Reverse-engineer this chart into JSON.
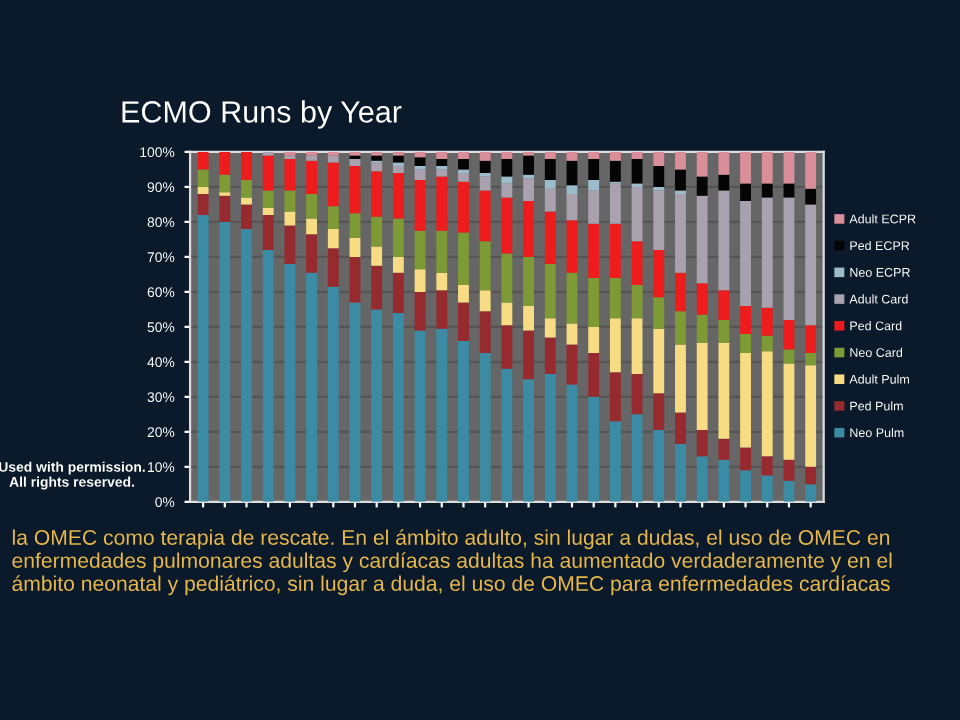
{
  "chart_data": {
    "type": "bar",
    "stacked": true,
    "title": "ECMO Runs by Year",
    "categories": [
      null,
      null,
      null,
      null,
      null,
      null,
      null,
      null,
      null,
      null,
      null,
      null,
      null,
      null,
      null,
      null,
      null,
      null,
      null,
      null,
      null,
      null,
      null,
      null,
      null,
      null,
      null,
      null,
      null
    ],
    "series": [
      {
        "name": "Neo Pulm",
        "color": "#3a8ba3",
        "values": [
          82,
          80,
          78,
          72,
          68,
          65.5,
          61.5,
          57,
          55,
          54,
          49,
          49.5,
          46,
          42.5,
          38,
          35,
          36.5,
          33.5,
          30,
          23,
          25,
          20.5,
          16.5,
          13,
          12,
          9,
          7.5,
          6,
          5
        ]
      },
      {
        "name": "Ped Pulm",
        "color": "#962a2e",
        "values": [
          6,
          7.5,
          7,
          10,
          11,
          11,
          11,
          13,
          12.5,
          11.5,
          11,
          11,
          11,
          12,
          12.5,
          14,
          10.5,
          11.5,
          12.5,
          14,
          11.5,
          10.5,
          9,
          7.5,
          6,
          6.5,
          5.5,
          6,
          5
        ]
      },
      {
        "name": "Adult Pulm",
        "color": "#f7dc84",
        "values": [
          2,
          1,
          2,
          2,
          4,
          4.5,
          5.5,
          5.5,
          5.5,
          4.5,
          6.5,
          5,
          5,
          6,
          6.5,
          7,
          5.5,
          6,
          7.5,
          15.5,
          16,
          18.5,
          19.5,
          25,
          27.5,
          27,
          30,
          27.5,
          29
        ]
      },
      {
        "name": "Neo Card",
        "color": "#7d9a34",
        "values": [
          5,
          5,
          5,
          5,
          6,
          7,
          6.5,
          7,
          8.5,
          11,
          11,
          12,
          15,
          14,
          14,
          14,
          15.5,
          14.5,
          14,
          11.5,
          9.5,
          9,
          9.5,
          8,
          6.5,
          5.5,
          4.5,
          4,
          3.5
        ]
      },
      {
        "name": "Ped Card",
        "color": "#ee1c1c",
        "values": [
          5,
          6.5,
          8,
          10,
          9,
          9.5,
          12.5,
          13.5,
          13,
          13,
          14.5,
          15.5,
          14.5,
          14.5,
          16,
          16,
          15,
          15,
          15.5,
          15.5,
          12.5,
          13.5,
          11,
          9,
          8.5,
          8,
          8,
          8.5,
          8
        ]
      },
      {
        "name": "Adult Card",
        "color": "#a9a2ae",
        "values": [
          0,
          0,
          0,
          1,
          1,
          1.5,
          2,
          2,
          2.5,
          2,
          3,
          2,
          2.5,
          4,
          4,
          6.5,
          6.5,
          7.5,
          9.5,
          11.5,
          15.5,
          17,
          22.5,
          25,
          28.5,
          30,
          31.5,
          35,
          34.5
        ]
      },
      {
        "name": "Neo ECPR",
        "color": "#9bbccb",
        "values": [
          0,
          0,
          0,
          0,
          0,
          0,
          0,
          0,
          0.5,
          1,
          1,
          1,
          1,
          1,
          2,
          1,
          2.5,
          2.5,
          3,
          0.5,
          1,
          1,
          1,
          0,
          0,
          0,
          0,
          0,
          0
        ]
      },
      {
        "name": "Ped ECPR",
        "color": "#050505",
        "values": [
          0,
          0,
          0,
          0,
          0,
          0,
          0,
          1,
          1.5,
          2,
          2.5,
          2,
          3,
          3.5,
          5,
          5.5,
          6,
          7,
          6,
          6,
          7,
          6,
          6,
          5.5,
          4.5,
          5,
          4,
          4,
          4.5
        ]
      },
      {
        "name": "Adult ECPR",
        "color": "#d98e9a",
        "values": [
          0,
          0,
          0,
          0,
          1,
          1,
          1,
          1,
          1,
          1,
          1.5,
          2,
          2,
          2.5,
          2,
          1,
          2,
          2.5,
          2,
          2.5,
          2,
          4,
          5,
          7,
          6.5,
          9,
          9,
          9,
          10.5
        ]
      }
    ],
    "ylim": [
      0,
      100
    ],
    "yticks": [
      {
        "value": 0,
        "label": "0%"
      },
      {
        "value": 10,
        "label": "10%"
      },
      {
        "value": 20,
        "label": "20%"
      },
      {
        "value": 30,
        "label": "30%"
      },
      {
        "value": 40,
        "label": "40%"
      },
      {
        "value": 50,
        "label": "50%"
      },
      {
        "value": 60,
        "label": "60%"
      },
      {
        "value": 70,
        "label": "70%"
      },
      {
        "value": 80,
        "label": "80%"
      },
      {
        "value": 90,
        "label": "90%"
      },
      {
        "value": 100,
        "label": "100%"
      }
    ],
    "grid": "y",
    "legend": "right",
    "annotations": [
      "Used with permission.\nAll rights reserved.",
      "la OMEC como terapia de rescate. En el ámbito adulto, sin lugar a dudas, el uso de OMEC en enfermedades pulmonares adultas y cardíacas adultas ha aumentado verdaderamente y en el ámbito neonatal y pediátrico, sin lugar a duda, el uso de OMEC para enfermedades cardíacas"
    ]
  }
}
